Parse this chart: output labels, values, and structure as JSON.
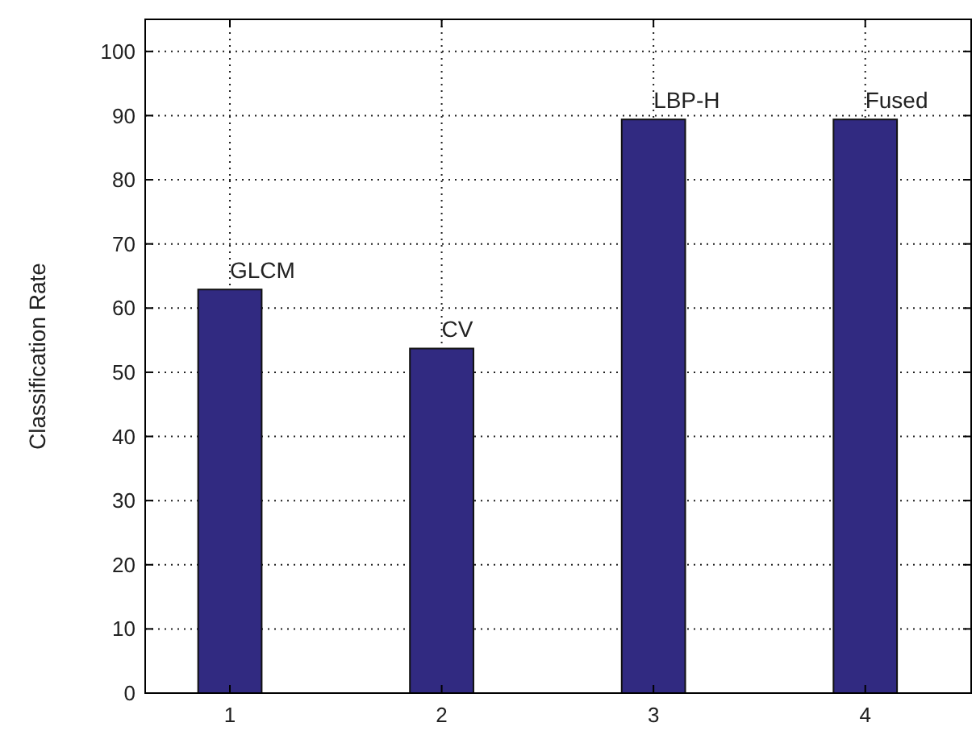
{
  "chart_data": {
    "type": "bar",
    "ylabel": "Classification Rate",
    "x": [
      1,
      2,
      3,
      4
    ],
    "values": [
      62.9,
      53.7,
      89.4,
      89.4
    ],
    "color": "#312a81",
    "xlim": [
      0.6,
      4.5
    ],
    "xticks": [
      1,
      2,
      3,
      4
    ],
    "ylim": [
      0,
      105
    ],
    "yticks": [
      0,
      10,
      20,
      30,
      40,
      50,
      60,
      70,
      80,
      90,
      100
    ],
    "grid": true,
    "annotations": [
      {
        "text": "GLCM",
        "x": 1,
        "y": 62.9
      },
      {
        "text": "CV",
        "x": 2,
        "y": 53.7
      },
      {
        "text": "LBP-H",
        "x": 3,
        "y": 89.4
      },
      {
        "text": "Fused",
        "x": 4,
        "y": 89.4
      }
    ]
  }
}
